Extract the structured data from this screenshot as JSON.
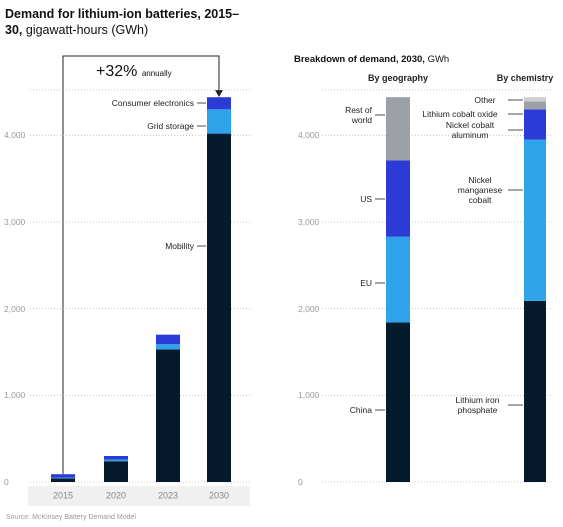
{
  "chart_data": [
    {
      "type": "bar",
      "stacked": true,
      "title": "Demand for lithium-ion batteries, 2015–30,",
      "unit": "gigawatt-hours (GWh)",
      "annotation": "+32%",
      "annotation_sub": "annually",
      "source": "Source: McKinsey Battery Demand Model",
      "categories": [
        "2015",
        "2020",
        "2023",
        "2030"
      ],
      "series": [
        {
          "name": "Mobility",
          "color": "#061a2e",
          "values": [
            40,
            240,
            1530,
            4020
          ]
        },
        {
          "name": "Grid storage",
          "color": "#2ea3ea",
          "values": [
            10,
            20,
            60,
            280
          ]
        },
        {
          "name": "Consumer electronics",
          "color": "#2c3ad6",
          "values": [
            40,
            40,
            110,
            140
          ]
        }
      ],
      "ylim": [
        0,
        4500
      ],
      "yticks": [
        0,
        {
          "value": 1000,
          "label": "1,000"
        },
        {
          "value": 2000,
          "label": "2,000"
        },
        {
          "value": 3000,
          "label": "3,000"
        },
        {
          "value": 4000,
          "label": "4,000"
        }
      ],
      "grid": true
    },
    {
      "type": "bar",
      "stacked": true,
      "title": "Breakdown of demand, 2030,",
      "unit": "GWh",
      "categories": [
        "By geography"
      ],
      "series": [
        {
          "name": "China",
          "color": "#061a2e",
          "values": [
            1840
          ]
        },
        {
          "name": "EU",
          "color": "#2ea3ea",
          "values": [
            990
          ]
        },
        {
          "name": "US",
          "color": "#2c3ad6",
          "values": [
            880
          ]
        },
        {
          "name": "Rest of world",
          "color": "#9ba1a7",
          "values": [
            730
          ]
        }
      ],
      "ylim": [
        0,
        4500
      ],
      "yticks": [
        0,
        {
          "value": 1000,
          "label": "1,000"
        },
        {
          "value": 2000,
          "label": "2,000"
        },
        {
          "value": 3000,
          "label": "3,000"
        },
        {
          "value": 4000,
          "label": "4,000"
        }
      ],
      "grid": true
    },
    {
      "type": "bar",
      "stacked": true,
      "categories": [
        "By chemistry"
      ],
      "series": [
        {
          "name": "Lithium iron phosphate",
          "color": "#061a2e",
          "values": [
            2090
          ]
        },
        {
          "name": "Nickel manganese cobalt",
          "color": "#2ea3ea",
          "values": [
            1860
          ]
        },
        {
          "name": "Nickel cobalt aluminum",
          "color": "#2c3ad6",
          "values": [
            350
          ]
        },
        {
          "name": "Lithium cobalt oxide",
          "color": "#9ba1a7",
          "values": [
            90
          ]
        },
        {
          "name": "Other",
          "color": "#cfcfcf",
          "values": [
            50
          ]
        }
      ],
      "ylim": [
        0,
        4500
      ]
    }
  ]
}
